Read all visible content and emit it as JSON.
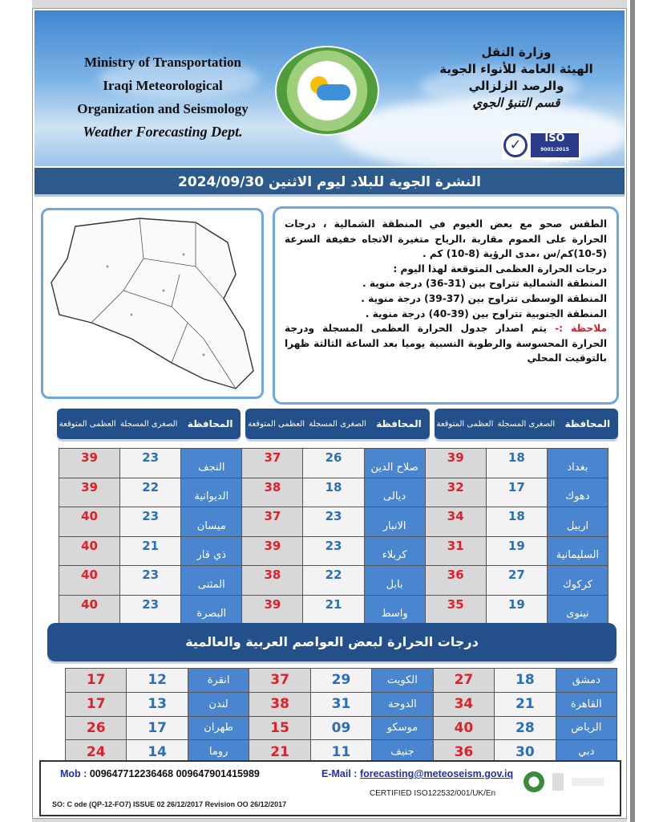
{
  "header": {
    "en_lines": [
      "Ministry of Transportation",
      "Iraqi Meteorological",
      "Organization and Seismology"
    ],
    "en_dept": "Weather Forecasting Dept.",
    "ar_lines": [
      "وزارة النقل",
      "الهيئة العامة للأنواء الجوية",
      "والرصد الزلزالي"
    ],
    "ar_dept": "قسم التنبؤ الجوي",
    "iso_label": "ISO",
    "iso_sub": "9001:2015 CERTIFIED"
  },
  "title": "النشرة الجوية للبلاد ليوم الاثنين  2024/09/30",
  "forecast": {
    "para": "الطقس صحو  مع بعض الغيوم في المنطقة الشمالية ، درجات الحرارة على العموم مقاربة ،الرياح متغيرة الاتجاه خفيفة السرعة (5-10)كم/س ،مدى الرؤية  (8-10) كم .",
    "heading": "درجات الحرارة العظمى المتوقعة لهذا اليوم :",
    "regions": [
      "المنطقة الشمالية تتراوح بين (31-36) درجة منوية .",
      "المنطقة الوسطى تتراوح بين (37-39) درجة منوية .",
      "المنطقة الجنوبية تتراوح بين (39-40) درجة منوية ."
    ],
    "note_label": "ملاحظة :-",
    "note": " يتم اصدار جدول الحرارة العظمى المسجلة ودرجة الحرارة المحسوسة والرطوبة النسبية يوميا بعد الساعة الثالثة ظهرا بالتوقيت المحلي"
  },
  "table_headers": {
    "province": "المحافظة",
    "min": "الصغرى المسجلة",
    "max": "العظمى المتوقعة"
  },
  "provinces": [
    [
      {
        "name": "بغداد",
        "min": "18",
        "max": "39"
      },
      {
        "name": "صلاح الدين",
        "min": "26",
        "max": "37"
      },
      {
        "name": "النجف",
        "min": "23",
        "max": "39"
      }
    ],
    [
      {
        "name": "دهوك",
        "min": "17",
        "max": "32"
      },
      {
        "name": "ديالى",
        "min": "18",
        "max": "38"
      },
      {
        "name": "الديوانية",
        "min": "22",
        "max": "39"
      }
    ],
    [
      {
        "name": "اربيل",
        "min": "18",
        "max": "34"
      },
      {
        "name": "الانبار",
        "min": "23",
        "max": "37"
      },
      {
        "name": "ميسان",
        "min": "23",
        "max": "40"
      }
    ],
    [
      {
        "name": "السليمانية",
        "min": "19",
        "max": "31"
      },
      {
        "name": "كربلاء",
        "min": "23",
        "max": "39"
      },
      {
        "name": "ذي قار",
        "min": "21",
        "max": "40"
      }
    ],
    [
      {
        "name": "كركوك",
        "min": "27",
        "max": "36"
      },
      {
        "name": "بابل",
        "min": "22",
        "max": "38"
      },
      {
        "name": "المثنى",
        "min": "23",
        "max": "40"
      }
    ],
    [
      {
        "name": "نينوى",
        "min": "19",
        "max": "35"
      },
      {
        "name": "واسط",
        "min": "21",
        "max": "39"
      },
      {
        "name": "البصرة",
        "min": "23",
        "max": "40"
      }
    ]
  ],
  "cities_title": "درجات الحرارة لبعض العواصم العربية والعالمية",
  "cities": [
    [
      {
        "name": "دمشق",
        "min": "18",
        "max": "27"
      },
      {
        "name": "الكويت",
        "min": "29",
        "max": "37"
      },
      {
        "name": "انقرة",
        "min": "12",
        "max": "17"
      }
    ],
    [
      {
        "name": "القاهرة",
        "min": "21",
        "max": "34"
      },
      {
        "name": "الدوحة",
        "min": "31",
        "max": "38"
      },
      {
        "name": "لندن",
        "min": "13",
        "max": "17"
      }
    ],
    [
      {
        "name": "الرياض",
        "min": "28",
        "max": "40"
      },
      {
        "name": "موسكو",
        "min": "09",
        "max": "15"
      },
      {
        "name": "طهران",
        "min": "17",
        "max": "26"
      }
    ],
    [
      {
        "name": "دبي",
        "min": "30",
        "max": "36"
      },
      {
        "name": "جنيف",
        "min": "11",
        "max": "21"
      },
      {
        "name": "روما",
        "min": "14",
        "max": "24"
      }
    ]
  ],
  "footer": {
    "mob_label": "Mob :",
    "mob_numbers": "009647712236468  009647901415989",
    "email_label": "E-Mail :",
    "email": "forecasting@meteoseism.gov.iq",
    "certified": "CERTIFIED ISO122532/001/UK/En",
    "code": "SO:   C ode (QP-12-FO7)  ISSUE 02  26/12/2017  Revision  OO  26/12/2017"
  },
  "colors": {
    "header_blue": "#23508a",
    "name_cell": "#4a86cf",
    "min_text": "#2b6fb6",
    "max_text": "#e0202a"
  }
}
